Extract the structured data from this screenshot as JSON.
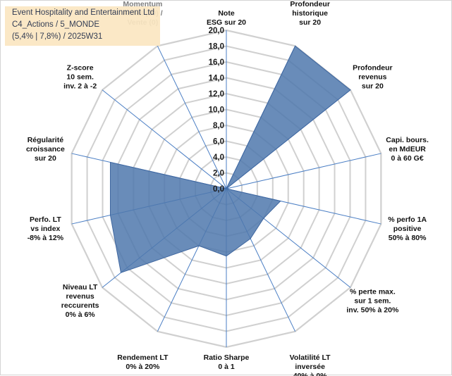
{
  "title_box": {
    "line1": "Event Hospitality and Entertainment Ltd",
    "line2": "C4_Actions / 5_MONDE",
    "line3": "(5,4% | 7,8%) / 2025W31"
  },
  "colors": {
    "fill": "#4f78ad",
    "stroke": "#3f67a0",
    "grid": "#d0d0d0",
    "spoke": "#4a7ec4",
    "title_bg": "#fbe7c2"
  },
  "chart_data": {
    "type": "radar",
    "rmin": 0,
    "rmax": 20,
    "ticks": [
      "0,0",
      "2,0",
      "4,0",
      "6,0",
      "8,0",
      "10,0",
      "12,0",
      "14,0",
      "16,0",
      "18,0",
      "20,0"
    ],
    "axes": [
      {
        "label": [
          "Note",
          "ESG sur 20"
        ],
        "value": 0
      },
      {
        "label": [
          "Profondeur",
          "historique",
          "sur 20"
        ],
        "value": 20
      },
      {
        "label": [
          "Profondeur",
          "revenus",
          "sur 20"
        ],
        "value": 20
      },
      {
        "label": [
          "Capi. bours.",
          "en MdEUR",
          "0 à 60 G€"
        ],
        "value": 0
      },
      {
        "label": [
          "% perfo 1A",
          "positive",
          "50% à 80%"
        ],
        "value": 7
      },
      {
        "label": [
          "% perte max.",
          "sur 1 sem.",
          "inv. 50% à 20%"
        ],
        "value": 6
      },
      {
        "label": [
          "Volatilité LT",
          "inversée",
          "40% à 0%"
        ],
        "value": 7
      },
      {
        "label": [
          "Ratio Sharpe",
          "0 à 1"
        ],
        "value": 8.5
      },
      {
        "label": [
          "Rendement LT",
          "0% à 20%"
        ],
        "value": 8
      },
      {
        "label": [
          "Niveau LT",
          "revenus",
          "reccurents",
          "0% à 6%"
        ],
        "value": 17
      },
      {
        "label": [
          "Perfo. LT",
          "vs index",
          "-8% à 12%"
        ],
        "value": 15
      },
      {
        "label": [
          "Régularité",
          "croissance",
          "sur 20"
        ],
        "value": 15
      },
      {
        "label": [
          "Z-score",
          "10 sem.",
          "inv. 2 à -2"
        ],
        "value": 0
      },
      {
        "label": [
          "Momentum",
          "Achat (20) /",
          "Vente (0)"
        ],
        "value": 0
      }
    ]
  }
}
